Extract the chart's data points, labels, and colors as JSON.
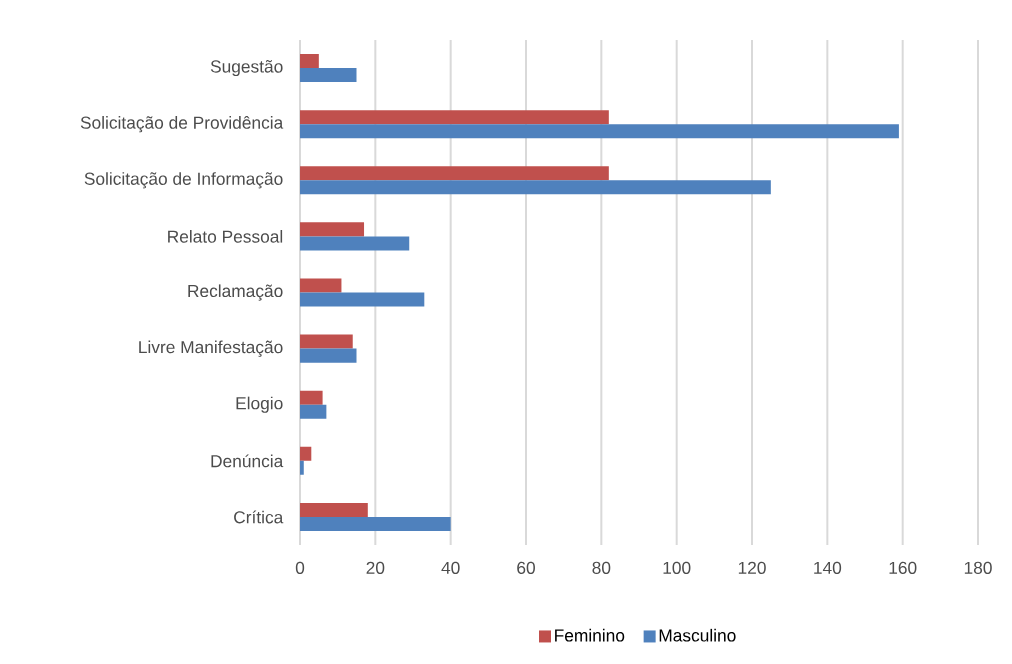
{
  "chart_data": {
    "type": "bar",
    "orientation": "horizontal",
    "categories": [
      "Sugestão",
      "Solicitação de Providência",
      "Solicitação de Informação",
      "Relato Pessoal",
      "Reclamação",
      "Livre Manifestação",
      "Elogio",
      "Denúncia",
      "Crítica"
    ],
    "series": [
      {
        "name": "Feminino",
        "color": "#c0504d",
        "values": [
          5,
          82,
          82,
          17,
          11,
          14,
          6,
          3,
          18
        ]
      },
      {
        "name": "Masculino",
        "color": "#4f81bd",
        "values": [
          15,
          159,
          125,
          29,
          33,
          15,
          7,
          1,
          40
        ]
      }
    ],
    "xlim": [
      0,
      180
    ],
    "xticks": [
      0,
      20,
      40,
      60,
      80,
      100,
      120,
      140,
      160,
      180
    ],
    "grid": "x",
    "legend": "bottom"
  }
}
